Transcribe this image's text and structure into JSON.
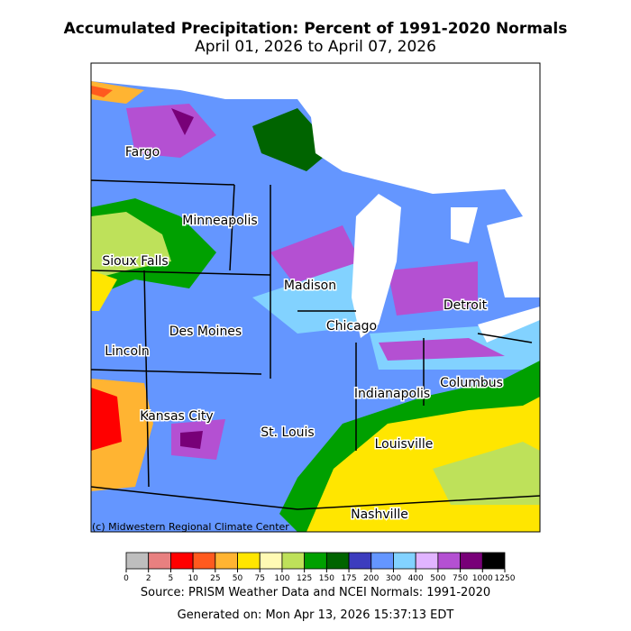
{
  "header": {
    "title": "Accumulated Precipitation: Percent of 1991-2020 Normals",
    "subtitle": "April 01, 2026 to April 07, 2026"
  },
  "map": {
    "credit": "(c) Midwestern Regional Climate Center",
    "cities": [
      "Fargo",
      "Minneapolis",
      "Sioux Falls",
      "Madison",
      "Detroit",
      "Chicago",
      "Des Moines",
      "Lincoln",
      "Columbus",
      "Indianapolis",
      "Kansas City",
      "St. Louis",
      "Louisville",
      "Nashville"
    ]
  },
  "colorbar": {
    "ticks": [
      0,
      2,
      5,
      10,
      25,
      50,
      75,
      100,
      125,
      150,
      175,
      200,
      300,
      400,
      500,
      750,
      1000,
      1250
    ],
    "colors": [
      "#bebebe",
      "#e88080",
      "#ff0000",
      "#ff5a1e",
      "#ffb432",
      "#ffe600",
      "#fffab4",
      "#bee15a",
      "#00a000",
      "#006400",
      "#3c3cbe",
      "#6496ff",
      "#82d2ff",
      "#e1b4ff",
      "#b450d2",
      "#780078",
      "#000000"
    ]
  },
  "footer": {
    "source": "Source: PRISM Weather Data and NCEI Normals: 1991-2020",
    "generated": "Generated on: Mon Apr 13, 2026 15:37:13 EDT"
  }
}
